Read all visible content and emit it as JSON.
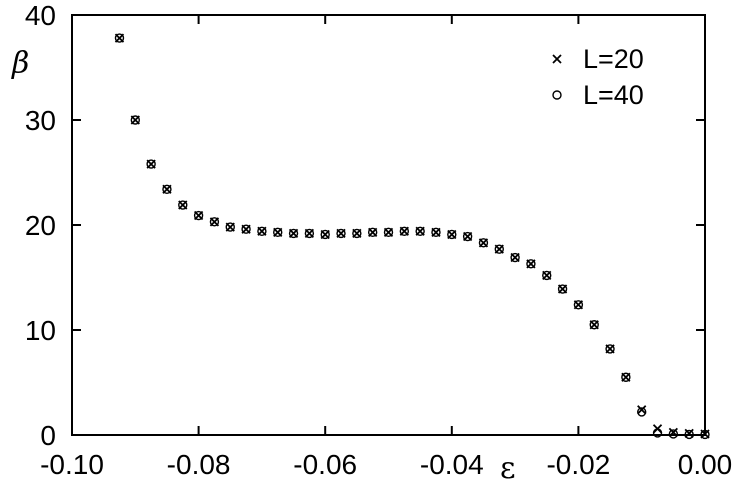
{
  "chart_data": {
    "type": "scatter",
    "title": "",
    "xlabel": "ε",
    "ylabel": "β",
    "xlim": [
      -0.1,
      0.0
    ],
    "ylim": [
      0,
      40
    ],
    "xticks": [
      -0.1,
      -0.08,
      -0.06,
      -0.04,
      -0.02,
      0.0
    ],
    "xtick_labels": [
      "-0.10",
      "-0.08",
      "-0.06",
      "-0.04",
      "-0.02",
      "0.00"
    ],
    "yticks": [
      0,
      10,
      20,
      30,
      40
    ],
    "ytick_labels": [
      "0",
      "10",
      "20",
      "30",
      "40"
    ],
    "grid": false,
    "legend_position": "top-right",
    "series": [
      {
        "name": "L=20",
        "marker": "cross",
        "x": [
          -0.0925,
          -0.09,
          -0.0875,
          -0.085,
          -0.0825,
          -0.08,
          -0.0775,
          -0.075,
          -0.0725,
          -0.07,
          -0.0675,
          -0.065,
          -0.0625,
          -0.06,
          -0.0575,
          -0.055,
          -0.0525,
          -0.05,
          -0.0475,
          -0.045,
          -0.0425,
          -0.04,
          -0.0375,
          -0.035,
          -0.0325,
          -0.03,
          -0.0275,
          -0.025,
          -0.0225,
          -0.02,
          -0.0175,
          -0.015,
          -0.0125,
          -0.01,
          -0.0075,
          -0.005,
          -0.0025,
          0.0
        ],
        "y": [
          37.8,
          30.0,
          25.8,
          23.4,
          21.9,
          20.9,
          20.3,
          19.8,
          19.6,
          19.4,
          19.3,
          19.2,
          19.2,
          19.1,
          19.2,
          19.2,
          19.3,
          19.3,
          19.4,
          19.4,
          19.3,
          19.1,
          18.9,
          18.3,
          17.7,
          16.9,
          16.3,
          15.2,
          13.9,
          12.4,
          10.5,
          8.2,
          5.5,
          2.4,
          0.6,
          0.25,
          0.15,
          0.1
        ]
      },
      {
        "name": "L=40",
        "marker": "circle",
        "x": [
          -0.0925,
          -0.09,
          -0.0875,
          -0.085,
          -0.0825,
          -0.08,
          -0.0775,
          -0.075,
          -0.0725,
          -0.07,
          -0.0675,
          -0.065,
          -0.0625,
          -0.06,
          -0.0575,
          -0.055,
          -0.0525,
          -0.05,
          -0.0475,
          -0.045,
          -0.0425,
          -0.04,
          -0.0375,
          -0.035,
          -0.0325,
          -0.03,
          -0.0275,
          -0.025,
          -0.0225,
          -0.02,
          -0.0175,
          -0.015,
          -0.0125,
          -0.01,
          -0.0075,
          -0.005,
          -0.0025,
          0.0
        ],
        "y": [
          37.8,
          30.0,
          25.8,
          23.4,
          21.9,
          20.9,
          20.3,
          19.8,
          19.6,
          19.4,
          19.3,
          19.2,
          19.2,
          19.1,
          19.2,
          19.2,
          19.3,
          19.3,
          19.4,
          19.4,
          19.3,
          19.1,
          18.9,
          18.3,
          17.7,
          16.9,
          16.3,
          15.2,
          13.9,
          12.4,
          10.5,
          8.2,
          5.5,
          2.2,
          0.2,
          0.1,
          0.05,
          0.05
        ]
      }
    ]
  }
}
